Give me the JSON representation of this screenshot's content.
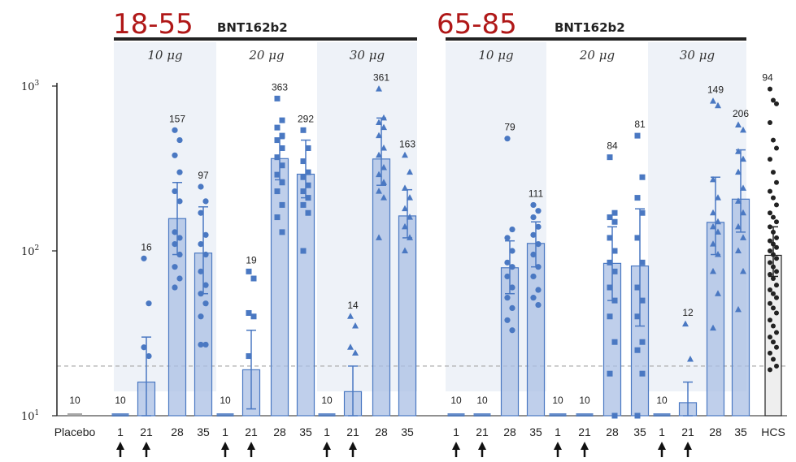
{
  "panels": [
    {
      "age_label": "18-55",
      "vaccine_label": "BNT162b2"
    },
    {
      "age_label": "65-85",
      "vaccine_label": "BNT162b2"
    }
  ],
  "chart_data": {
    "type": "bar",
    "y_scale": "log",
    "ylim": [
      10,
      1000
    ],
    "y_ticks": [
      {
        "value": 1000,
        "base": "10",
        "exp": "3"
      },
      {
        "value": 100,
        "base": "10",
        "exp": "2"
      },
      {
        "value": 10,
        "base": "10",
        "exp": "1"
      }
    ],
    "threshold": 20,
    "grid": false,
    "colors": {
      "bar": "#4a78c2",
      "placebo": "#999999",
      "hcs": "#222222",
      "shade": "#eef2f8",
      "threshold": "#aaaaaa",
      "age_label": "#b01818"
    },
    "dose_groups": [
      {
        "panel": 0,
        "label": "10 μg",
        "shaded": true
      },
      {
        "panel": 0,
        "label": "20 μg",
        "shaded": false
      },
      {
        "panel": 0,
        "label": "30 μg",
        "shaded": true
      },
      {
        "panel": 1,
        "label": "10 μg",
        "shaded": true
      },
      {
        "panel": 1,
        "label": "20 μg",
        "shaded": false
      },
      {
        "panel": 1,
        "label": "30 μg",
        "shaded": true
      }
    ],
    "bars": [
      {
        "category": "Placebo",
        "group": "placebo",
        "value": 10,
        "label": "10",
        "marker": "square",
        "vaccination": false
      },
      {
        "category": "1",
        "group": 0,
        "value": 10,
        "label": "10",
        "marker": "circle",
        "vaccination": true
      },
      {
        "category": "21",
        "group": 0,
        "value": 16,
        "label": "16",
        "marker": "circle",
        "vaccination": true,
        "ci": [
          10,
          30
        ],
        "points": [
          90,
          48,
          26,
          23
        ]
      },
      {
        "category": "28",
        "group": 0,
        "value": 157,
        "label": "157",
        "marker": "circle",
        "vaccination": false,
        "ci": [
          95,
          260
        ],
        "points": [
          540,
          470,
          380,
          300,
          230,
          200,
          130,
          120,
          110,
          95,
          80,
          68,
          60
        ]
      },
      {
        "category": "35",
        "group": 0,
        "value": 97,
        "label": "97",
        "marker": "circle",
        "vaccination": false,
        "ci": [
          55,
          185
        ],
        "points": [
          245,
          200,
          170,
          125,
          110,
          95,
          75,
          62,
          55,
          48,
          40,
          27,
          27
        ]
      },
      {
        "category": "1",
        "group": 1,
        "value": 10,
        "label": "10",
        "marker": "square",
        "vaccination": true
      },
      {
        "category": "21",
        "group": 1,
        "value": 19,
        "label": "19",
        "marker": "square",
        "vaccination": true,
        "ci": [
          11,
          33
        ],
        "points": [
          75,
          68,
          42,
          40,
          23
        ]
      },
      {
        "category": "28",
        "group": 1,
        "value": 363,
        "label": "363",
        "marker": "square",
        "vaccination": false,
        "ci": [
          270,
          480
        ],
        "points": [
          840,
          620,
          560,
          500,
          470,
          420,
          370,
          330,
          290,
          260,
          230,
          190,
          160,
          130
        ]
      },
      {
        "category": "35",
        "group": 1,
        "value": 292,
        "label": "292",
        "marker": "square",
        "vaccination": false,
        "ci": [
          210,
          470
        ],
        "points": [
          540,
          420,
          350,
          300,
          280,
          250,
          230,
          210,
          190,
          170,
          100
        ]
      },
      {
        "category": "1",
        "group": 2,
        "value": 10,
        "label": "10",
        "marker": "triangle",
        "vaccination": true
      },
      {
        "category": "21",
        "group": 2,
        "value": 14,
        "label": "14",
        "marker": "triangle",
        "vaccination": true,
        "ci": [
          10,
          20
        ],
        "points": [
          40,
          35,
          26,
          24
        ]
      },
      {
        "category": "28",
        "group": 2,
        "value": 361,
        "label": "361",
        "marker": "triangle",
        "vaccination": false,
        "ci": [
          250,
          640
        ],
        "points": [
          960,
          640,
          600,
          560,
          500,
          420,
          380,
          320,
          290,
          260,
          230,
          210,
          120
        ]
      },
      {
        "category": "35",
        "group": 2,
        "value": 163,
        "label": "163",
        "marker": "triangle",
        "vaccination": false,
        "ci": [
          120,
          235
        ],
        "points": [
          380,
          300,
          240,
          210,
          180,
          160,
          140,
          120,
          100
        ]
      },
      {
        "category": "1",
        "group": 3,
        "value": 10,
        "label": "10",
        "marker": "circle",
        "vaccination": true
      },
      {
        "category": "21",
        "group": 3,
        "value": 10,
        "label": "10",
        "marker": "circle",
        "vaccination": true
      },
      {
        "category": "28",
        "group": 3,
        "value": 79,
        "label": "79",
        "marker": "circle",
        "vaccination": false,
        "ci": [
          55,
          115
        ],
        "points": [
          480,
          135,
          120,
          100,
          85,
          80,
          70,
          60,
          52,
          45,
          38,
          33
        ]
      },
      {
        "category": "35",
        "group": 3,
        "value": 111,
        "label": "111",
        "marker": "circle",
        "vaccination": false,
        "ci": [
          80,
          150
        ],
        "points": [
          190,
          175,
          160,
          140,
          125,
          110,
          95,
          80,
          70,
          58,
          52,
          47
        ]
      },
      {
        "category": "1",
        "group": 4,
        "value": 10,
        "label": "10",
        "marker": "square",
        "vaccination": true
      },
      {
        "category": "21",
        "group": 4,
        "value": 10,
        "label": "10",
        "marker": "square",
        "vaccination": true
      },
      {
        "category": "28",
        "group": 4,
        "value": 84,
        "label": "84",
        "marker": "square",
        "vaccination": false,
        "ci": [
          50,
          140
        ],
        "points": [
          370,
          170,
          160,
          150,
          120,
          100,
          85,
          75,
          60,
          50,
          40,
          28,
          18,
          10
        ]
      },
      {
        "category": "35",
        "group": 4,
        "value": 81,
        "label": "81",
        "marker": "square",
        "vaccination": false,
        "ci": [
          35,
          180
        ],
        "points": [
          500,
          280,
          210,
          170,
          120,
          85,
          60,
          50,
          40,
          28,
          25,
          18,
          10
        ]
      },
      {
        "category": "1",
        "group": 5,
        "value": 10,
        "label": "10",
        "marker": "triangle",
        "vaccination": true
      },
      {
        "category": "21",
        "group": 5,
        "value": 12,
        "label": "12",
        "marker": "triangle",
        "vaccination": true,
        "ci": [
          10,
          16
        ],
        "points": [
          36,
          22
        ]
      },
      {
        "category": "28",
        "group": 5,
        "value": 149,
        "label": "149",
        "marker": "triangle",
        "vaccination": false,
        "ci": [
          95,
          280
        ],
        "points": [
          810,
          760,
          270,
          210,
          170,
          150,
          140,
          130,
          110,
          95,
          75,
          55,
          34
        ]
      },
      {
        "category": "35",
        "group": 5,
        "value": 206,
        "label": "206",
        "marker": "triangle",
        "vaccination": false,
        "ci": [
          130,
          410
        ],
        "points": [
          580,
          540,
          400,
          360,
          300,
          240,
          200,
          170,
          140,
          120,
          100,
          75,
          44
        ]
      },
      {
        "category": "HCS",
        "group": "hcs",
        "value": 94,
        "label": "94",
        "marker": "dot",
        "vaccination": false,
        "ci": [
          70,
          140
        ],
        "points": [
          960,
          820,
          780,
          600,
          470,
          420,
          360,
          300,
          260,
          230,
          210,
          190,
          170,
          160,
          150,
          140,
          130,
          120,
          115,
          110,
          105,
          100,
          95,
          90,
          85,
          80,
          75,
          72,
          68,
          62,
          58,
          55,
          52,
          48,
          45,
          42,
          38,
          35,
          32,
          30,
          28,
          26,
          24,
          22,
          20,
          19
        ]
      }
    ]
  }
}
